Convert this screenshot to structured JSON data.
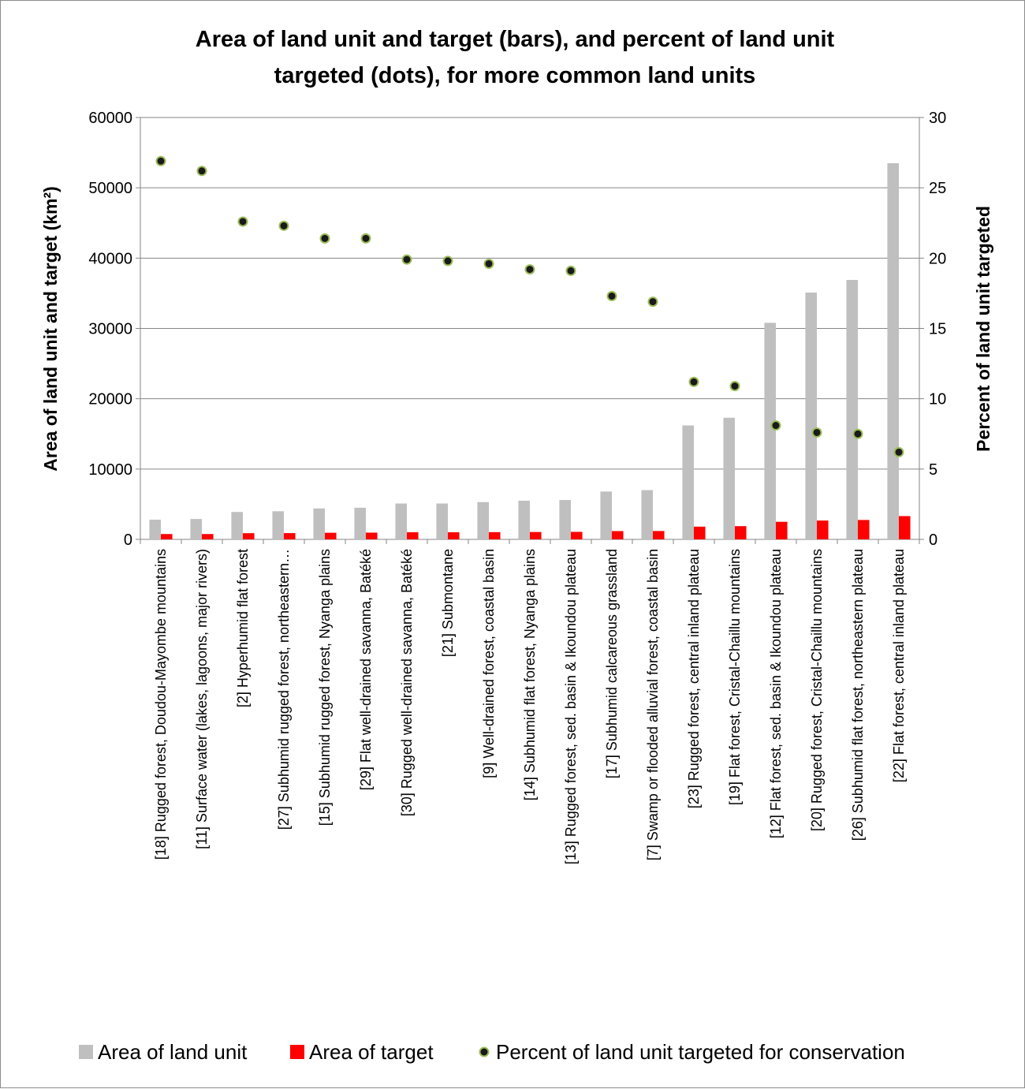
{
  "chart_data": {
    "type": "bar",
    "title_lines": [
      "Area of land unit and target (bars), and percent  of land unit",
      "targeted (dots), for  more common land units"
    ],
    "ylabel": "Area of land unit and target  (km²)",
    "y2label": "Percent of land unit targeted",
    "ylim": [
      0,
      60000
    ],
    "y2lim": [
      0,
      30
    ],
    "yticks": [
      "0",
      "10000",
      "20000",
      "30000",
      "40000",
      "50000",
      "60000"
    ],
    "y2ticks": [
      "0",
      "5",
      "10",
      "15",
      "20",
      "25",
      "30"
    ],
    "grid": "horizontal",
    "legend_position": "bottom",
    "categories": [
      "[18] Rugged forest, Doudou-Mayombe mountains",
      "[11] Surface water (lakes, lagoons, major rivers)",
      "[2] Hyperhumid flat forest",
      "[27] Subhumid rugged forest, northeastern…",
      "[15] Subhumid rugged forest, Nyanga plains",
      "[29] Flat well-drained savanna, Batéké",
      "[30] Rugged well-drained savanna, Batéké",
      "[21] Submontane",
      "[9] Well-drained forest, coastal basin",
      "[14] Subhumid flat forest, Nyanga plains",
      "[13] Rugged forest, sed. basin & Ikoundou plateau",
      "[17] Subhumid calcareous grassland",
      "[7] Swamp or flooded alluvial forest, coastal basin",
      "[23] Rugged forest, central inland plateau",
      "[19] Flat forest, Cristal-Chaillu mountains",
      "[12] Flat forest, sed. basin & Ikoundou plateau",
      "[20] Rugged forest, Cristal-Chaillu mountains",
      "[26] Subhumid flat forest, northeastern plateau",
      "[22] Flat forest, central inland plateau"
    ],
    "series": [
      {
        "name": "Area of land unit",
        "kind": "bar",
        "color": "#BFBFBF",
        "axis": "left",
        "values": [
          2800,
          2900,
          3900,
          4000,
          4400,
          4500,
          5100,
          5100,
          5300,
          5500,
          5600,
          6800,
          7000,
          16200,
          17300,
          30800,
          35100,
          36900,
          53500
        ]
      },
      {
        "name": "Area of target",
        "kind": "bar",
        "color": "#FF0000",
        "axis": "left",
        "values": [
          760,
          760,
          880,
          890,
          940,
          960,
          1010,
          1010,
          1030,
          1050,
          1070,
          1180,
          1190,
          1810,
          1880,
          2500,
          2680,
          2760,
          3310
        ]
      },
      {
        "name": "Percent of land unit targeted for conservation",
        "kind": "point",
        "color": "#1a1a1a",
        "edge_color": "#9BBB59",
        "axis": "right",
        "values": [
          26.9,
          26.2,
          22.6,
          22.3,
          21.4,
          21.4,
          19.9,
          19.8,
          19.6,
          19.2,
          19.1,
          17.3,
          16.9,
          11.2,
          10.9,
          8.1,
          7.6,
          7.5,
          6.2
        ]
      }
    ]
  }
}
